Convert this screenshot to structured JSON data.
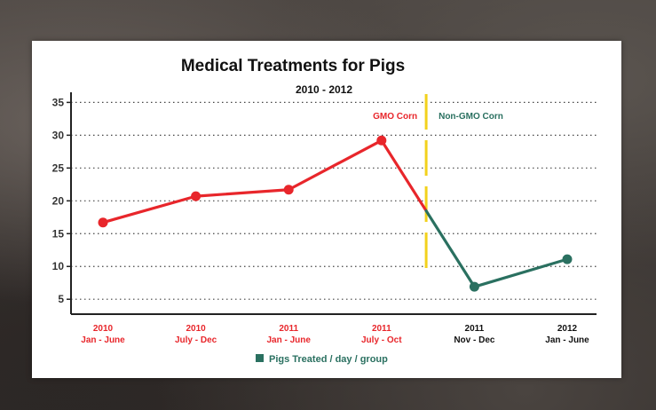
{
  "chart_data": {
    "type": "line",
    "title": "Medical Treatments for Pigs",
    "subtitle": "2010 - 2012",
    "xlabel": "",
    "ylabel": "",
    "ylim": [
      3,
      36
    ],
    "yticks": [
      5,
      10,
      15,
      20,
      25,
      30,
      35
    ],
    "grid": "horizontal-dotted",
    "categories": [
      {
        "line1": "2010",
        "line2": "Jan - June"
      },
      {
        "line1": "2010",
        "line2": "July - Dec"
      },
      {
        "line1": "2011",
        "line2": "Jan - June"
      },
      {
        "line1": "2011",
        "line2": "July - Oct"
      },
      {
        "line1": "2011",
        "line2": "Nov - Dec"
      },
      {
        "line1": "2012",
        "line2": "Jan - June"
      }
    ],
    "series": [
      {
        "name": "Pigs Treated / day / group",
        "values": [
          16.7,
          20.7,
          21.7,
          29.2,
          6.9,
          11.1
        ]
      }
    ],
    "annotations": [
      {
        "text": "GMO Corn",
        "color": "#e8262b"
      },
      {
        "text": "Non-GMO Corn",
        "color": "#2a7060"
      }
    ],
    "divider_between": [
      3,
      4
    ],
    "legend": {
      "label": "Pigs Treated / day / group",
      "position": "bottom-center"
    },
    "colors": {
      "gmo": "#e8262b",
      "non_gmo": "#2a7060",
      "divider": "#f2d11c",
      "axis": "#222222"
    }
  }
}
